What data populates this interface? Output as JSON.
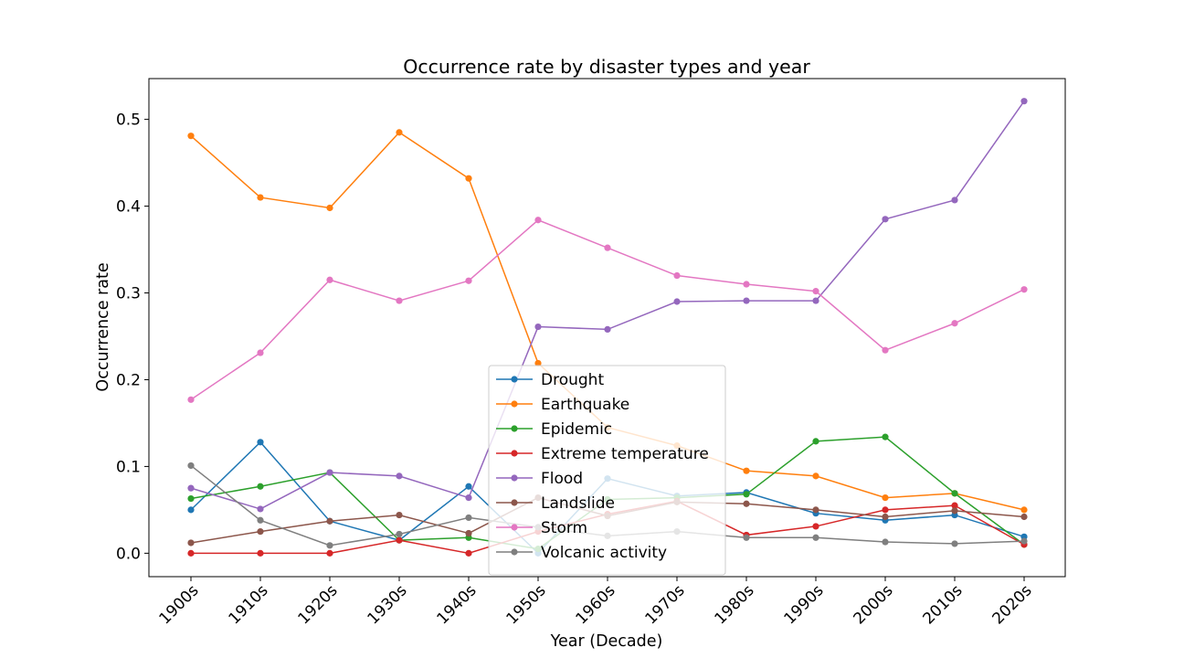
{
  "chart_data": {
    "type": "line",
    "title": "Occurrence rate by disaster types and year",
    "xlabel": "Year (Decade)",
    "ylabel": "Occurrence rate",
    "categories": [
      "1900s",
      "1910s",
      "1920s",
      "1930s",
      "1940s",
      "1950s",
      "1960s",
      "1970s",
      "1980s",
      "1990s",
      "2000s",
      "2010s",
      "2020s"
    ],
    "ylim": [
      -0.027,
      0.547
    ],
    "yticks": [
      0.0,
      0.1,
      0.2,
      0.3,
      0.4,
      0.5
    ],
    "ytick_labels": [
      "0.0",
      "0.1",
      "0.2",
      "0.3",
      "0.4",
      "0.5"
    ],
    "grid": false,
    "legend_position": "lower-center",
    "series": [
      {
        "name": "Drought",
        "color": "#1f77b4",
        "values": [
          0.05,
          0.128,
          0.037,
          0.015,
          0.077,
          0.0,
          0.086,
          0.066,
          0.07,
          0.046,
          0.038,
          0.044,
          0.019
        ]
      },
      {
        "name": "Earthquake",
        "color": "#ff7f0e",
        "values": [
          0.481,
          0.41,
          0.398,
          0.485,
          0.432,
          0.219,
          0.145,
          0.124,
          0.095,
          0.089,
          0.064,
          0.069,
          0.05
        ]
      },
      {
        "name": "Epidemic",
        "color": "#2ca02c",
        "values": [
          0.063,
          0.077,
          0.093,
          0.015,
          0.018,
          0.005,
          0.062,
          0.064,
          0.068,
          0.129,
          0.134,
          0.069,
          0.01
        ]
      },
      {
        "name": "Extreme temperature",
        "color": "#d62728",
        "values": [
          0.0,
          0.0,
          0.0,
          0.015,
          0.0,
          0.025,
          0.045,
          0.06,
          0.021,
          0.031,
          0.05,
          0.055,
          0.01
        ]
      },
      {
        "name": "Flood",
        "color": "#9467bd",
        "values": [
          0.075,
          0.051,
          0.093,
          0.089,
          0.064,
          0.261,
          0.258,
          0.29,
          0.291,
          0.291,
          0.385,
          0.407,
          0.521
        ]
      },
      {
        "name": "Landslide",
        "color": "#8c564b",
        "values": [
          0.012,
          0.025,
          0.037,
          0.044,
          0.023,
          0.064,
          0.043,
          0.059,
          0.057,
          0.05,
          0.042,
          0.049,
          0.042
        ]
      },
      {
        "name": "Storm",
        "color": "#e377c2",
        "values": [
          0.177,
          0.231,
          0.315,
          0.291,
          0.314,
          0.384,
          0.352,
          0.32,
          0.31,
          0.302,
          0.234,
          0.265,
          0.304
        ]
      },
      {
        "name": "Volcanic activity",
        "color": "#7f7f7f",
        "values": [
          0.101,
          0.038,
          0.009,
          0.022,
          0.041,
          0.03,
          0.02,
          0.025,
          0.018,
          0.018,
          0.013,
          0.011,
          0.014
        ]
      }
    ]
  }
}
